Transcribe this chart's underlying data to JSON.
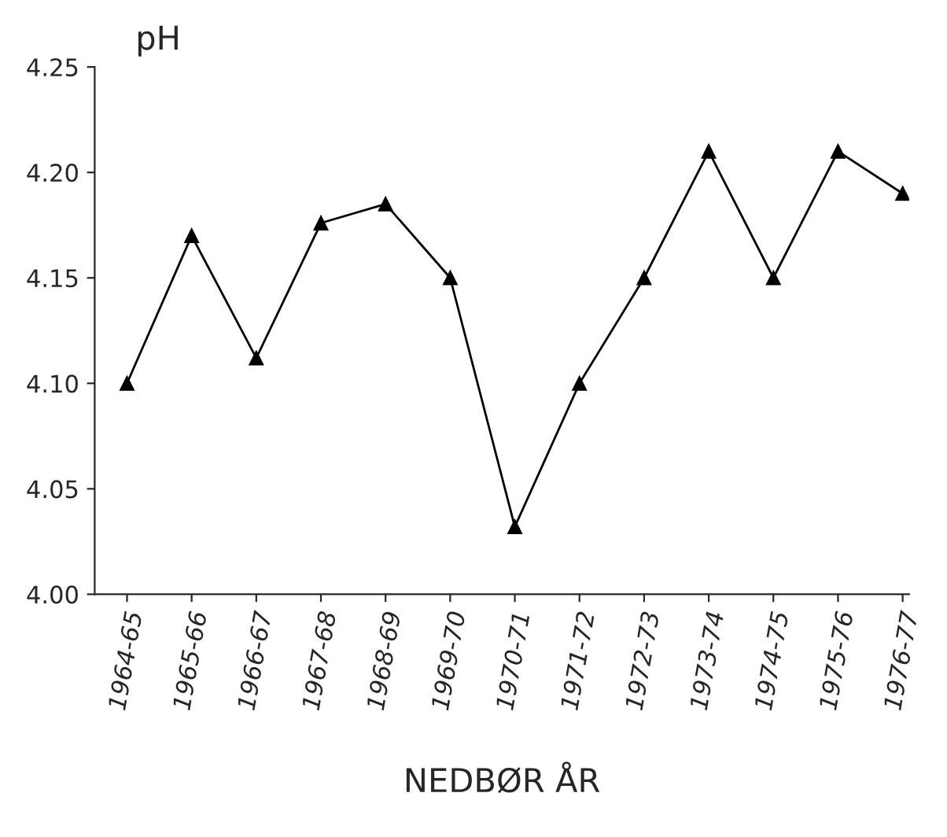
{
  "chart_data": {
    "type": "line",
    "ylabel": "pH",
    "xlabel": "NEDBØR ÅR",
    "categories": [
      "1964-65",
      "1965-66",
      "1966-67",
      "1967-68",
      "1968-69",
      "1969-70",
      "1970-71",
      "1971-72",
      "1972-73",
      "1973-74",
      "1974-75",
      "1975-76",
      "1976-77"
    ],
    "series": [
      {
        "color": "#000000",
        "values": [
          4.1,
          4.17,
          4.112,
          4.176,
          4.185,
          4.15,
          4.032,
          4.1,
          4.15,
          4.21,
          4.15,
          4.21,
          4.19
        ]
      }
    ],
    "ylim": [
      4.0,
      4.25
    ],
    "yticks": [
      {
        "value": 4.0,
        "label": "4.00"
      },
      {
        "value": 4.05,
        "label": "4.05"
      },
      {
        "value": 4.1,
        "label": "4.10"
      },
      {
        "value": 4.15,
        "label": "4.15"
      },
      {
        "value": 4.2,
        "label": "4.20"
      },
      {
        "value": 4.25,
        "label": "4.25"
      }
    ],
    "marker": "triangle",
    "line_style": "solid",
    "grid": false
  }
}
